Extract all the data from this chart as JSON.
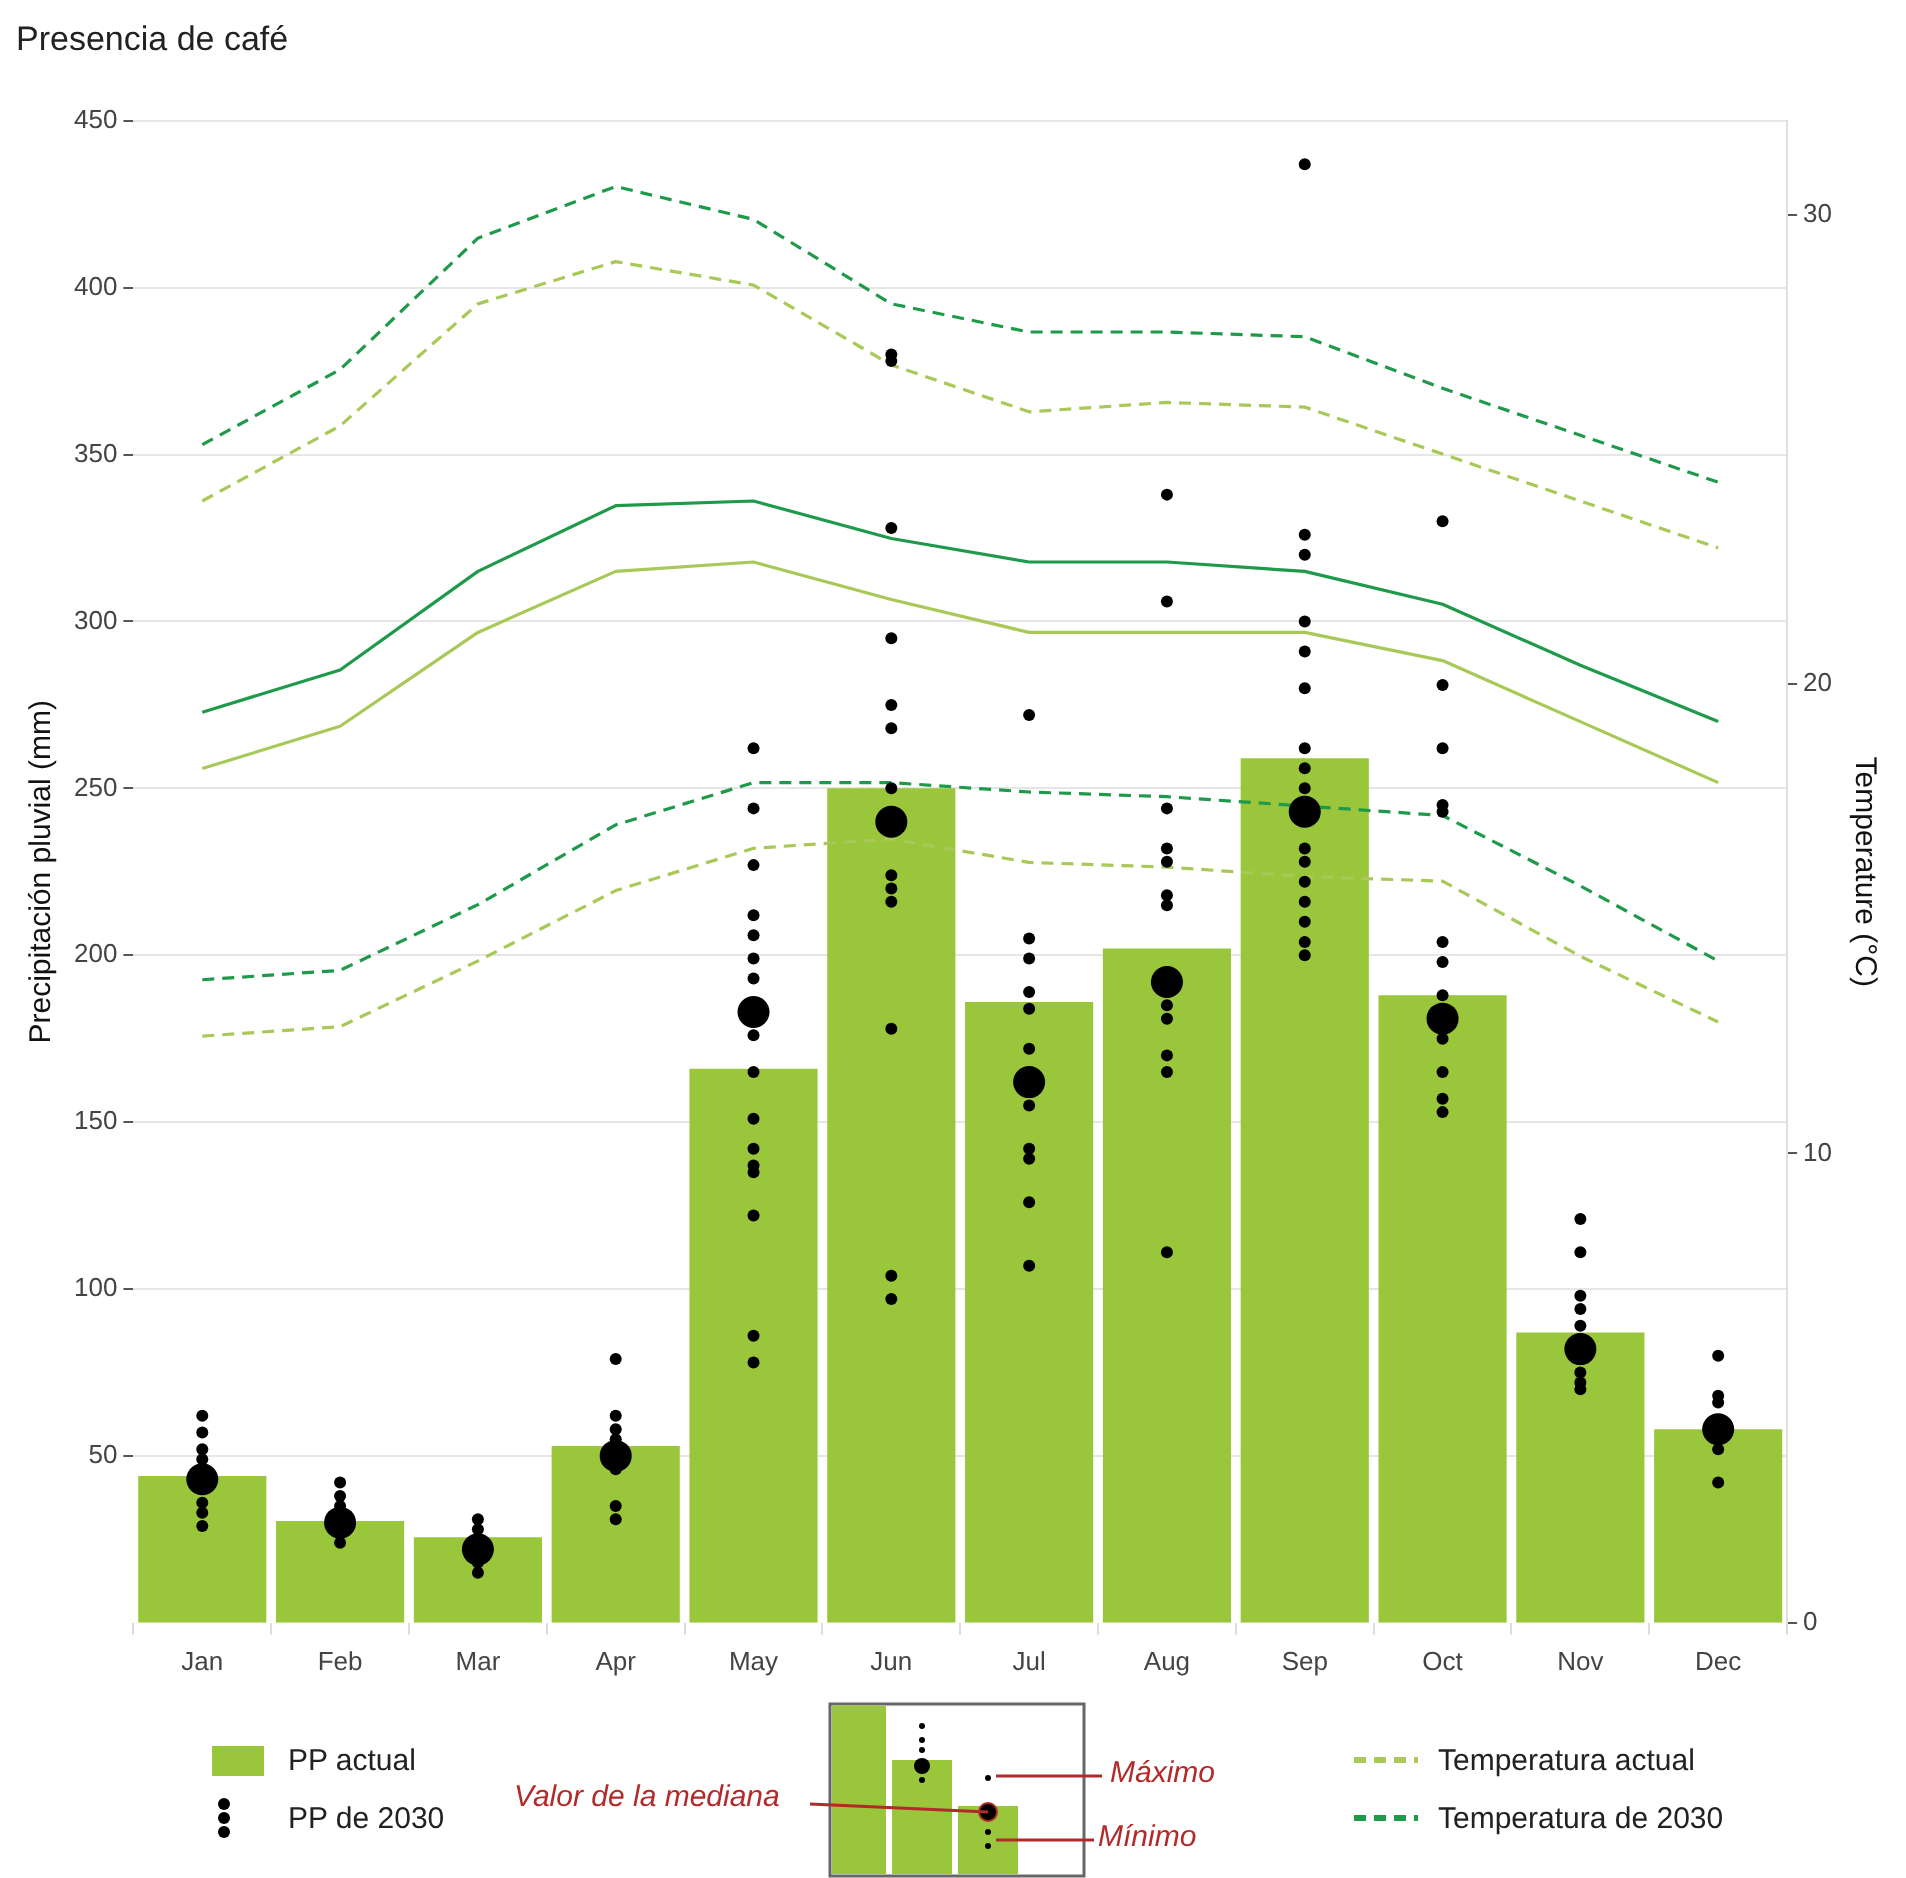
{
  "chart_data": {
    "type": "bar",
    "title": "Presencia de café",
    "ylabel": "Precipitación pluvial (mm)",
    "y2label": "Temperature (°C)",
    "categories": [
      "Jan",
      "Feb",
      "Mar",
      "Apr",
      "May",
      "Jun",
      "Jul",
      "Aug",
      "Sep",
      "Oct",
      "Nov",
      "Dec"
    ],
    "series": [
      {
        "name": "PP actual",
        "color": "#9ac63c",
        "values": [
          44,
          30.5,
          25.6,
          53,
          166,
          250,
          186,
          202,
          259,
          188,
          87,
          58
        ]
      },
      {
        "type": "scatter",
        "name": "PP de 2030",
        "color": "#000000",
        "marker": "circle",
        "x": [
          "Jan",
          "Jan",
          "Jan",
          "Jan",
          "Jan",
          "Jan",
          "Jan",
          "Feb",
          "Feb",
          "Feb",
          "Feb",
          "Mar",
          "Mar",
          "Mar",
          "Mar",
          "Apr",
          "Apr",
          "Apr",
          "Apr",
          "Apr",
          "Apr",
          "Apr",
          "May",
          "May",
          "May",
          "May",
          "May",
          "May",
          "May",
          "May",
          "May",
          "May",
          "May",
          "May",
          "May",
          "May",
          "May",
          "May",
          "Jun",
          "Jun",
          "Jun",
          "Jun",
          "Jun",
          "Jun",
          "Jun",
          "Jun",
          "Jun",
          "Jun",
          "Jun",
          "Jun",
          "Jun",
          "Jul",
          "Jul",
          "Jul",
          "Jul",
          "Jul",
          "Jul",
          "Jul",
          "Jul",
          "Jul",
          "Jul",
          "Jul",
          "Aug",
          "Aug",
          "Aug",
          "Aug",
          "Aug",
          "Aug",
          "Aug",
          "Aug",
          "Aug",
          "Aug",
          "Aug",
          "Aug",
          "Sep",
          "Sep",
          "Sep",
          "Sep",
          "Sep",
          "Sep",
          "Sep",
          "Sep",
          "Sep",
          "Sep",
          "Sep",
          "Sep",
          "Sep",
          "Sep",
          "Sep",
          "Sep",
          "Oct",
          "Oct",
          "Oct",
          "Oct",
          "Oct",
          "Oct",
          "Oct",
          "Oct",
          "Oct",
          "Oct",
          "Oct",
          "Oct",
          "Nov",
          "Nov",
          "Nov",
          "Nov",
          "Nov",
          "Nov",
          "Nov",
          "Nov",
          "Dec",
          "Dec",
          "Dec",
          "Dec",
          "Dec"
        ],
        "values": [
          62,
          57,
          52,
          49,
          36,
          33,
          29,
          42,
          38,
          35,
          24,
          31,
          28,
          18,
          15,
          79,
          62,
          58,
          55,
          46,
          35,
          31,
          262,
          244,
          227,
          212,
          206,
          199,
          193,
          176,
          165,
          151,
          142,
          137,
          135,
          122,
          86,
          78,
          380,
          378,
          328,
          295,
          275,
          268,
          250,
          224,
          220,
          216,
          178,
          104,
          97,
          272,
          205,
          199,
          189,
          184,
          172,
          155,
          142,
          139,
          126,
          107,
          338,
          306,
          244,
          232,
          228,
          218,
          215,
          185,
          181,
          170,
          165,
          111,
          437,
          326,
          320,
          300,
          291,
          280,
          262,
          256,
          250,
          232,
          228,
          222,
          216,
          210,
          204,
          200,
          330,
          281,
          262,
          245,
          243,
          204,
          198,
          188,
          175,
          165,
          157,
          153,
          121,
          111,
          98,
          94,
          89,
          75,
          72,
          70,
          80,
          68,
          66,
          52,
          42
        ]
      },
      {
        "type": "scatter",
        "color": "#000000",
        "marker": "circle",
        "x": [
          "Jan",
          "Feb",
          "Mar",
          "Apr",
          "May",
          "Jun",
          "Jul",
          "Aug",
          "Sep",
          "Oct",
          "Nov",
          "Dec"
        ],
        "values": [
          43,
          30,
          22,
          50,
          183,
          240,
          162,
          192,
          243,
          181,
          82,
          58
        ]
      },
      {
        "type": "line",
        "name": "Temperatura actual",
        "axis": "y2",
        "color": "#a8c957",
        "line_style": "dashed",
        "values": [
          23.9,
          25.5,
          28.1,
          29.0,
          28.5,
          26.8,
          25.8,
          26.0,
          25.9,
          24.9,
          23.9,
          22.9
        ]
      },
      {
        "type": "line",
        "axis": "y2",
        "color": "#a8c957",
        "line_style": "solid",
        "values": [
          18.2,
          19.1,
          21.1,
          22.4,
          22.6,
          21.8,
          21.1,
          21.1,
          21.1,
          20.5,
          19.2,
          17.9
        ]
      },
      {
        "type": "line",
        "axis": "y2",
        "color": "#a8c957",
        "line_style": "dashed",
        "values": [
          12.5,
          12.7,
          14.1,
          15.6,
          16.5,
          16.7,
          16.2,
          16.1,
          15.9,
          15.8,
          14.2,
          12.8
        ]
      },
      {
        "type": "line",
        "name": "Temperatura de 2030",
        "axis": "y2",
        "color": "#1e9a4a",
        "line_style": "dashed",
        "values": [
          25.1,
          26.7,
          29.5,
          30.6,
          29.9,
          28.1,
          27.5,
          27.5,
          27.4,
          26.3,
          25.3,
          24.3
        ]
      },
      {
        "type": "line",
        "axis": "y2",
        "color": "#1e9a4a",
        "line_style": "solid",
        "values": [
          19.4,
          20.3,
          22.4,
          23.8,
          23.9,
          23.1,
          22.6,
          22.6,
          22.4,
          21.7,
          20.4,
          19.2
        ]
      },
      {
        "type": "line",
        "axis": "y2",
        "color": "#1e9a4a",
        "line_style": "dashed",
        "values": [
          13.7,
          13.9,
          15.3,
          17.0,
          17.9,
          17.9,
          17.7,
          17.6,
          17.4,
          17.2,
          15.7,
          14.1
        ]
      }
    ],
    "ylim": [
      0,
      450
    ],
    "yticks": [
      50,
      100,
      150,
      200,
      250,
      300,
      350,
      400,
      450
    ],
    "y2lim": [
      0,
      32
    ],
    "y2ticks": [
      0,
      10,
      20,
      30
    ],
    "grid": "y",
    "legend": "bottom",
    "annotations": [
      "Valor de la mediana",
      "Máximo",
      "Mínimo"
    ]
  }
}
